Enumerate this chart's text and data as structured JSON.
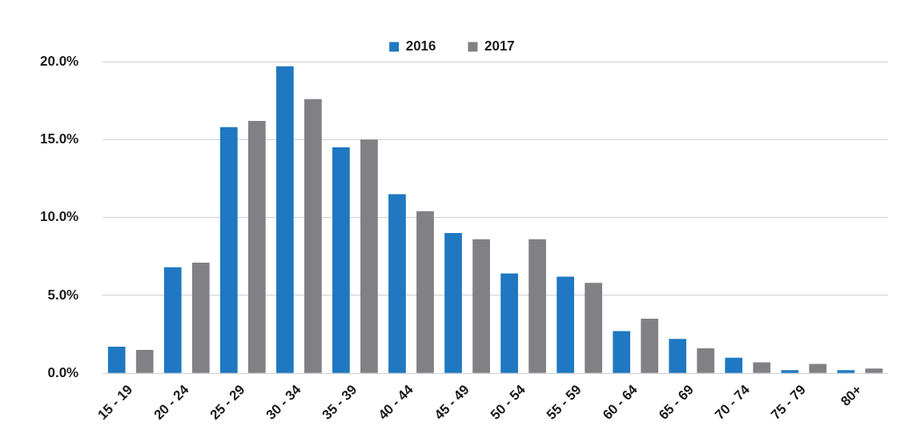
{
  "chart_data": {
    "type": "bar",
    "categories": [
      "15 - 19",
      "20 - 24",
      "25 - 29",
      "30 - 34",
      "35 - 39",
      "40 - 44",
      "45 - 49",
      "50 - 54",
      "55 - 59",
      "60 - 64",
      "65 - 69",
      "70 - 74",
      "75 - 79",
      "80+"
    ],
    "series": [
      {
        "name": "2016",
        "color": "#1f78c1",
        "values": [
          1.7,
          6.8,
          15.8,
          19.7,
          14.5,
          11.5,
          9.0,
          6.4,
          6.2,
          2.7,
          2.2,
          1.0,
          0.2,
          0.2
        ]
      },
      {
        "name": "2017",
        "color": "#818085",
        "values": [
          1.5,
          7.1,
          16.2,
          17.6,
          15.0,
          10.4,
          8.6,
          8.6,
          5.8,
          3.5,
          1.6,
          0.7,
          0.6,
          0.3
        ]
      }
    ],
    "ylim": [
      0,
      20
    ],
    "yticks": [
      {
        "value": 0,
        "label": "0.0%"
      },
      {
        "value": 5,
        "label": "5.0%"
      },
      {
        "value": 10,
        "label": "10.0%"
      },
      {
        "value": 15,
        "label": "15.0%"
      },
      {
        "value": 20,
        "label": "20.0%"
      }
    ],
    "grid": "y",
    "legend": "top"
  }
}
